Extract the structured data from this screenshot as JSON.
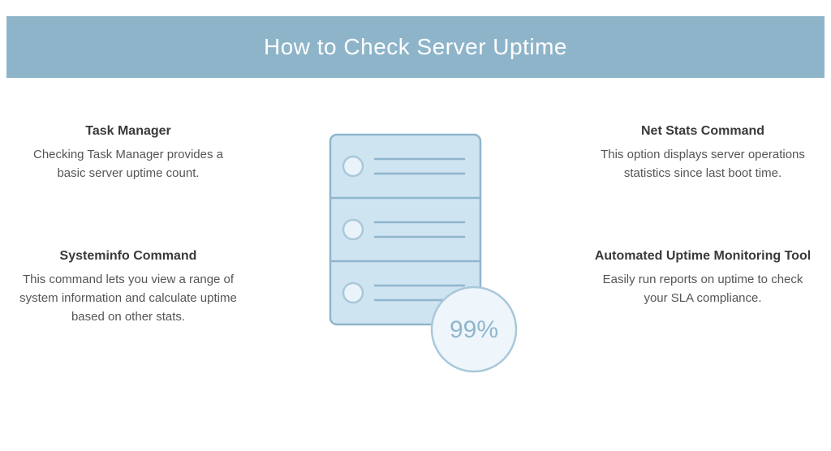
{
  "banner": {
    "title": "How to Check Server Uptime",
    "bg_color": "#8eb4c9",
    "fg_color": "#ffffff",
    "title_fontsize": 28,
    "title_weight": 300
  },
  "colors": {
    "heading": "#3a3a3a",
    "body": "#555555",
    "page_bg": "#ffffff"
  },
  "illustration": {
    "server_fill": "#cfe4f1",
    "server_stroke": "#8fb6cc",
    "circle_fill": "#eaf3f9",
    "circle_stroke": "#a9c8da",
    "badge_fill": "#eef6fb",
    "badge_stroke": "#a9c8da",
    "badge_text": "99%",
    "badge_text_color": "#8fb6cc",
    "stroke_width": 2.5,
    "panel_count": 3,
    "corner_radius": 8
  },
  "features": {
    "top_left": {
      "title": "Task Manager",
      "desc": "Checking Task Manager provides a basic server uptime count."
    },
    "top_right": {
      "title": "Net Stats Command",
      "desc": "This option displays server operations statistics since last boot time."
    },
    "bottom_left": {
      "title": "Systeminfo Command",
      "desc": "This command lets you view a range of system information and calculate uptime based on other stats."
    },
    "bottom_right": {
      "title": "Automated Uptime Monitoring Tool",
      "desc": "Easily run reports on uptime to check your SLA compliance."
    }
  }
}
